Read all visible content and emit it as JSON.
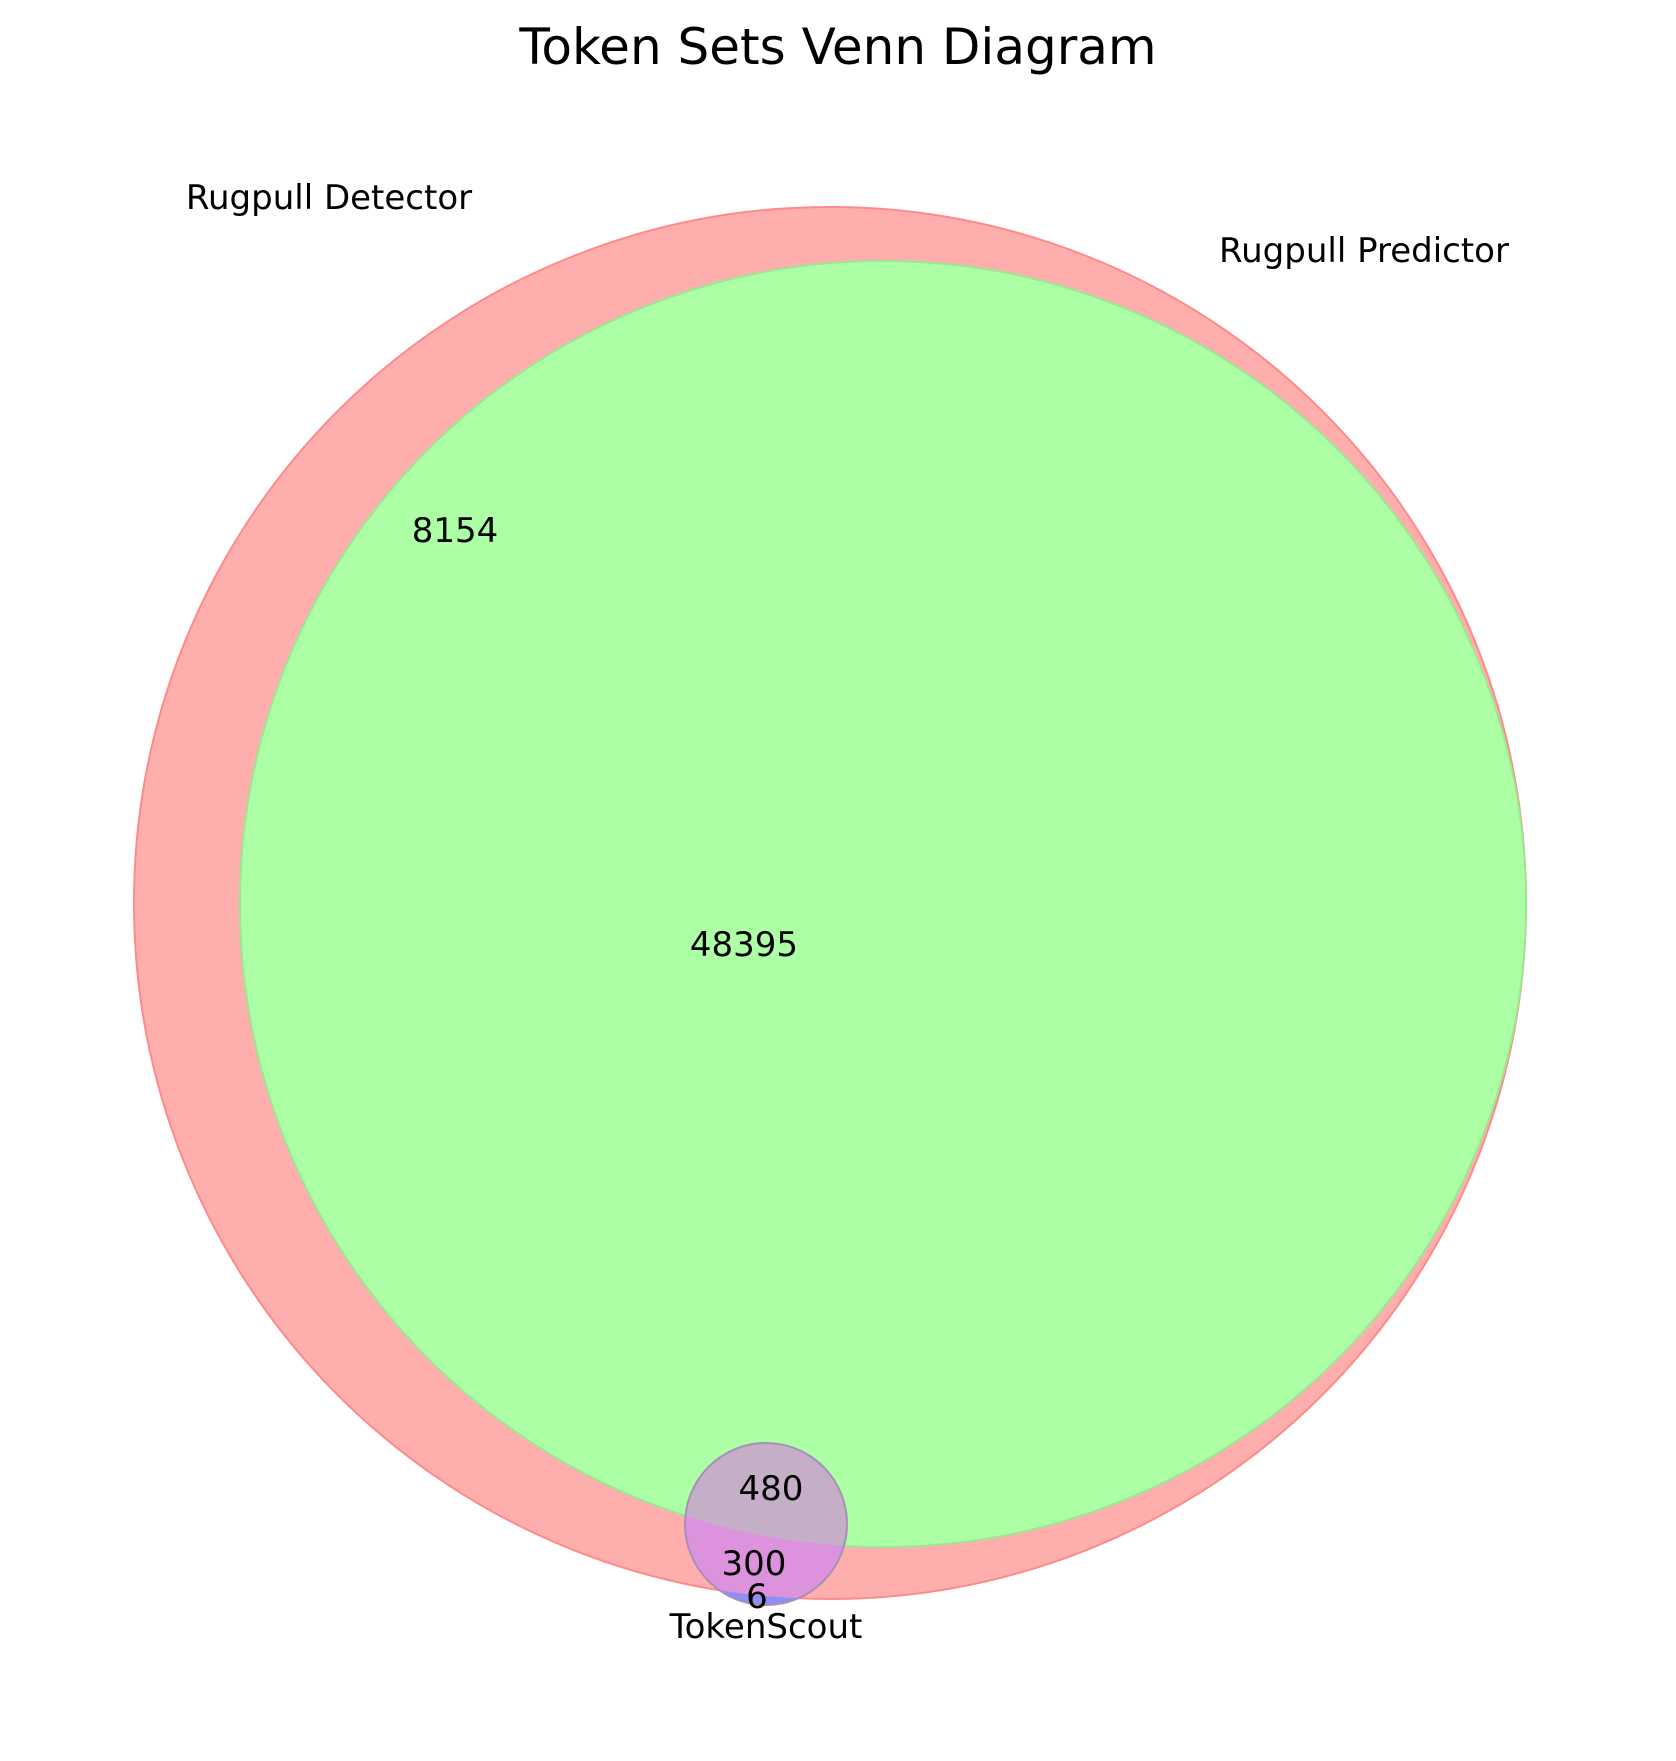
{
  "title": "Token Sets Venn Diagram",
  "sets": [
    {
      "key": "A",
      "name": "Rugpull Detector",
      "color": "#ff6b6b"
    },
    {
      "key": "B",
      "name": "Rugpull Predictor",
      "color": "#6bff6b"
    },
    {
      "key": "C",
      "name": "TokenScout",
      "color": "#6b6bff"
    }
  ],
  "regions": {
    "A_only": "8154",
    "A_and_B": "48395",
    "A_and_B_and_C": "480",
    "A_and_C": "300",
    "C_only": "6"
  }
}
